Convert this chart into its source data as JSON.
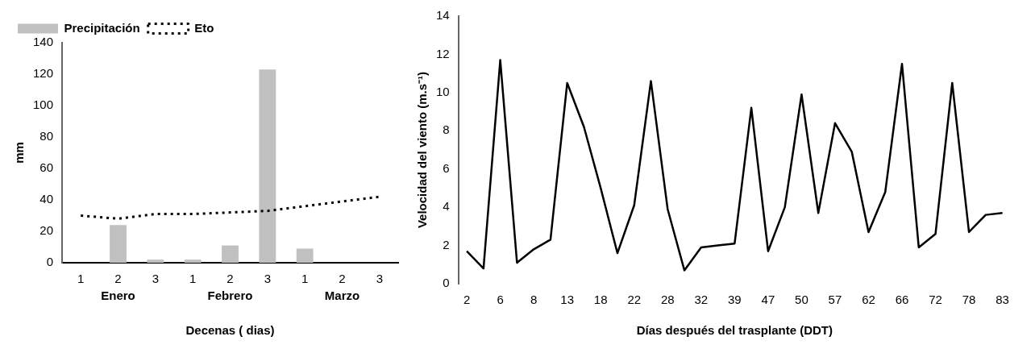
{
  "chart_data": [
    {
      "type": "bar",
      "categories": [
        "1",
        "2",
        "3",
        "1",
        "2",
        "3",
        "1",
        "2",
        "3"
      ],
      "xlabel": "Decenas ( dias)",
      "ylabel": "mm",
      "ylim": [
        0,
        140
      ],
      "yticks": [
        0,
        20,
        40,
        60,
        80,
        100,
        120,
        140
      ],
      "grid": false,
      "legend": "top left",
      "marker": "none",
      "annotations": [
        "Enero",
        "Febrero",
        "Marzo"
      ],
      "series": [
        {
          "name": "Precipitación",
          "type": "bar",
          "color": "#c0c0c0",
          "values": [
            0,
            24,
            2,
            2,
            11,
            123,
            9,
            0,
            0
          ]
        },
        {
          "name": "Eto",
          "type": "line",
          "line_style": "dotted",
          "color": "#000000",
          "values": [
            30,
            28,
            31,
            31,
            32,
            33,
            36,
            39,
            42
          ]
        }
      ]
    },
    {
      "type": "line",
      "categories": [
        "2",
        null,
        "6",
        null,
        "8",
        null,
        "13",
        null,
        "18",
        null,
        "22",
        null,
        "28",
        null,
        "32",
        null,
        "39",
        null,
        "47",
        null,
        "50",
        null,
        "57",
        null,
        "62",
        null,
        "66",
        null,
        "72",
        null,
        "78",
        null,
        "83"
      ],
      "xlabel": "Días después del trasplante (DDT)",
      "ylabel": "Velocidad del viento (m.s⁻¹)",
      "ylim": [
        0,
        14
      ],
      "yticks": [
        0,
        2,
        4,
        6,
        8,
        10,
        12,
        14
      ],
      "grid": false,
      "legend": false,
      "marker": "none",
      "line_style": "solid",
      "series": [
        {
          "color": "#000000",
          "values": [
            1.7,
            0.8,
            11.7,
            1.1,
            1.8,
            2.3,
            10.5,
            8.2,
            5.0,
            1.6,
            4.1,
            10.6,
            3.9,
            0.7,
            1.9,
            2.0,
            2.1,
            9.2,
            1.7,
            4.0,
            9.9,
            3.7,
            8.4,
            6.9,
            2.7,
            4.8,
            11.5,
            1.9,
            2.6,
            10.5,
            2.7,
            3.6,
            3.7
          ]
        }
      ]
    }
  ]
}
